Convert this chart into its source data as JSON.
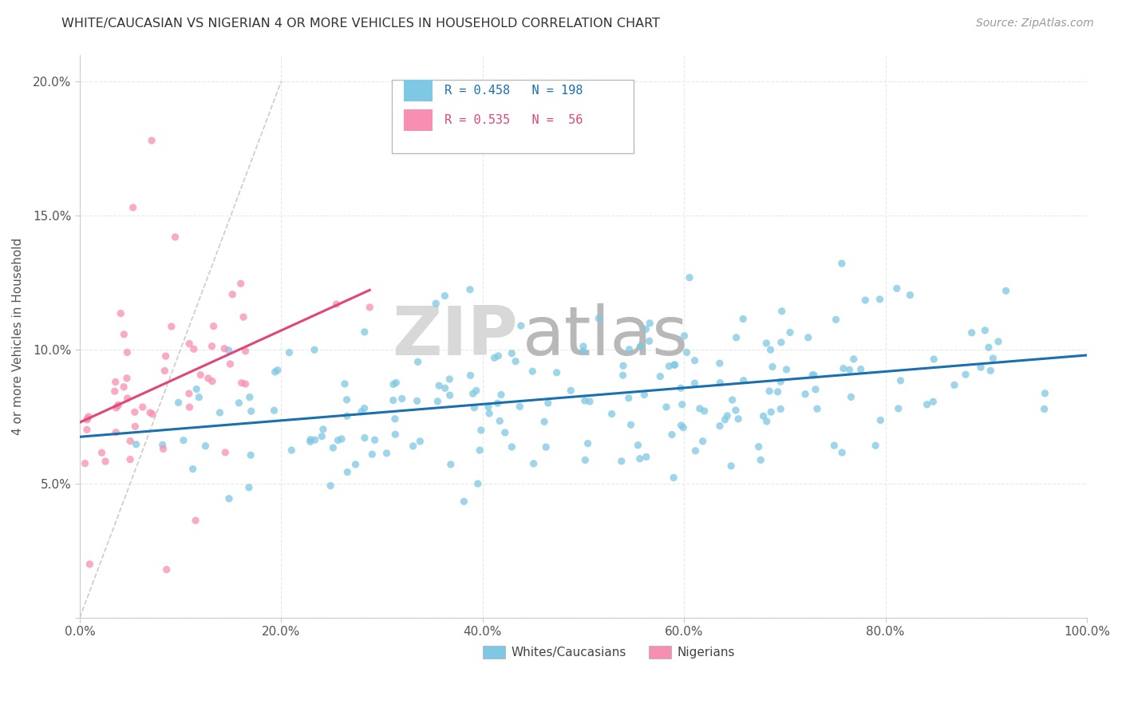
{
  "title": "WHITE/CAUCASIAN VS NIGERIAN 4 OR MORE VEHICLES IN HOUSEHOLD CORRELATION CHART",
  "source": "Source: ZipAtlas.com",
  "ylabel": "4 or more Vehicles in Household",
  "watermark_ZIP": "ZIP",
  "watermark_atlas": "atlas",
  "blue_R": 0.458,
  "blue_N": 198,
  "pink_R": 0.535,
  "pink_N": 56,
  "blue_color": "#7ec8e3",
  "pink_color": "#f78fb3",
  "blue_line_color": "#1a6faf",
  "pink_line_color": "#e0457b",
  "blue_label": "Whites/Caucasians",
  "pink_label": "Nigerians",
  "xlim": [
    0,
    100
  ],
  "ylim": [
    0,
    21
  ],
  "xtick_vals": [
    0,
    20,
    40,
    60,
    80,
    100
  ],
  "ytick_vals": [
    0,
    5,
    10,
    15,
    20
  ],
  "blue_seed": 42,
  "pink_seed": 7
}
